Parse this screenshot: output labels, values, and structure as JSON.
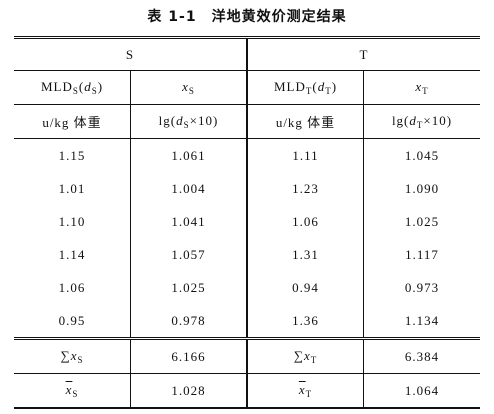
{
  "title": "表 1-1　洋地黄效价测定结果",
  "groups": [
    "S",
    "T"
  ],
  "header_rows": [
    [
      [
        {
          "text": "MLD"
        },
        {
          "text": "S",
          "style": "sub"
        },
        {
          "text": "("
        },
        {
          "text": "d",
          "style": "italic"
        },
        {
          "text": "S",
          "style": "sub"
        },
        {
          "text": ")"
        }
      ],
      [
        {
          "text": "x",
          "style": "italic"
        },
        {
          "text": "S",
          "style": "sub"
        }
      ],
      [
        {
          "text": "MLD"
        },
        {
          "text": "T",
          "style": "sub"
        },
        {
          "text": "("
        },
        {
          "text": "d",
          "style": "italic"
        },
        {
          "text": "T",
          "style": "sub"
        },
        {
          "text": ")"
        }
      ],
      [
        {
          "text": "x",
          "style": "italic"
        },
        {
          "text": "T",
          "style": "sub"
        }
      ]
    ],
    [
      "u/kg 体重",
      [
        {
          "text": "lg("
        },
        {
          "text": "d",
          "style": "italic"
        },
        {
          "text": "S",
          "style": "sub"
        },
        {
          "text": "×10)"
        }
      ],
      "u/kg 体重",
      [
        {
          "text": "lg("
        },
        {
          "text": "d",
          "style": "italic"
        },
        {
          "text": "T",
          "style": "sub"
        },
        {
          "text": "×10)"
        }
      ]
    ]
  ],
  "rows": [
    [
      "1.15",
      "1.061",
      "1.11",
      "1.045"
    ],
    [
      "1.01",
      "1.004",
      "1.23",
      "1.090"
    ],
    [
      "1.10",
      "1.041",
      "1.06",
      "1.025"
    ],
    [
      "1.14",
      "1.057",
      "1.31",
      "1.117"
    ],
    [
      "1.06",
      "1.025",
      "0.94",
      "0.973"
    ],
    [
      "0.95",
      "0.978",
      "1.36",
      "1.134"
    ]
  ],
  "summary_rows": [
    [
      [
        {
          "text": "∑"
        },
        {
          "text": "x",
          "style": "italic"
        },
        {
          "text": "S",
          "style": "sub"
        }
      ],
      "6.166",
      [
        {
          "text": "∑"
        },
        {
          "text": "x",
          "style": "italic"
        },
        {
          "text": "T",
          "style": "sub"
        }
      ],
      "6.384"
    ],
    [
      [
        {
          "text": "x",
          "style": "italic overline"
        },
        {
          "text": "S",
          "style": "sub"
        }
      ],
      "1.028",
      [
        {
          "text": "x",
          "style": "italic overline"
        },
        {
          "text": "T",
          "style": "sub"
        }
      ],
      "1.064"
    ]
  ]
}
